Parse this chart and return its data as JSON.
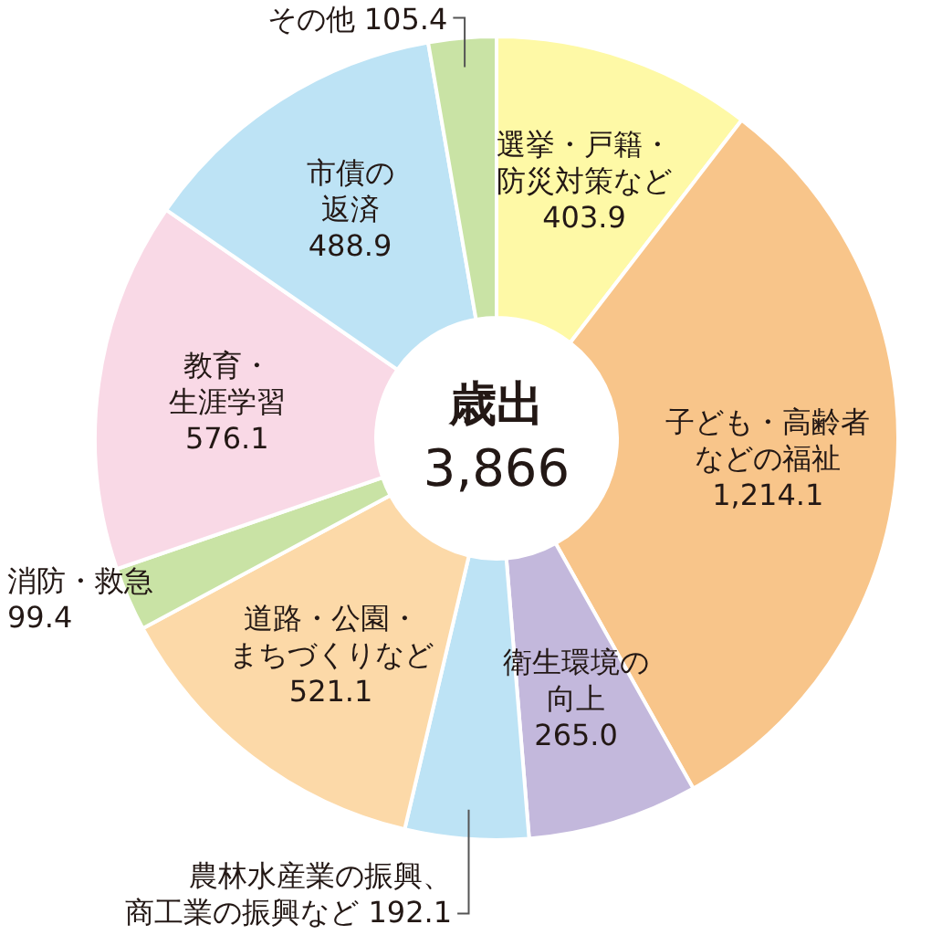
{
  "chart_data": {
    "type": "donut",
    "title": "歳出",
    "annotations": [
      "3,866"
    ],
    "categories": [
      "選挙・戸籍・防災対策など",
      "子ども・高齢者などの福祉",
      "衛生環境の向上",
      "農林水産業の振興、商工業の振興など",
      "道路・公園・まちづくりなど",
      "消防・救急",
      "教育・生涯学習",
      "市債の返済",
      "その他"
    ],
    "values": [
      403.9,
      1214.1,
      265.0,
      192.1,
      521.1,
      99.4,
      576.1,
      488.9,
      105.4
    ],
    "value_labels": [
      "403.9",
      "1,214.1",
      "265.0",
      "192.1",
      "521.1",
      "99.4",
      "576.1",
      "488.9",
      "105.4"
    ],
    "colors": [
      "#fef9a6",
      "#f8c58a",
      "#c3b8dc",
      "#bde3f5",
      "#fcd9a8",
      "#c9e3a5",
      "#f9d9e6",
      "#bde3f5",
      "#c9e3a5"
    ]
  }
}
